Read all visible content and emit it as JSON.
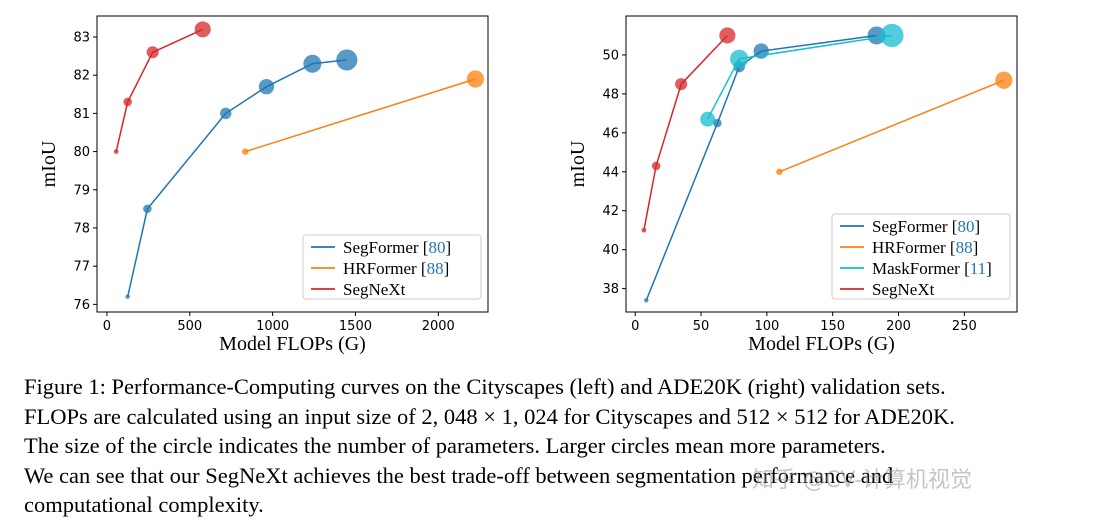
{
  "chart_data": [
    {
      "type": "scatter",
      "xlabel": "Model FLOPs (G)",
      "ylabel": "mIoU",
      "xlim": [
        -60,
        2300
      ],
      "ylim": [
        75.8,
        83.55
      ],
      "xticks": [
        "0",
        "500",
        "1000",
        "1500",
        "2000"
      ],
      "xtick_values": [
        0,
        500,
        1000,
        1500,
        2000
      ],
      "yticks": [
        "76",
        "77",
        "78",
        "79",
        "80",
        "81",
        "82",
        "83"
      ],
      "ytick_values": [
        76,
        77,
        78,
        79,
        80,
        81,
        82,
        83
      ],
      "legend_position": "lower-right",
      "series": [
        {
          "name": "SegFormer",
          "cite": "80",
          "color": "#1f77b4",
          "points": [
            {
              "x": 125,
              "y": 76.2,
              "s": 3.7
            },
            {
              "x": 244,
              "y": 78.5,
              "s": 13.7
            },
            {
              "x": 717,
              "y": 81.0,
              "s": 24.7
            },
            {
              "x": 963,
              "y": 81.7,
              "s": 44.6
            },
            {
              "x": 1240,
              "y": 82.3,
              "s": 61.4
            },
            {
              "x": 1448,
              "y": 82.4,
              "s": 84.7
            }
          ]
        },
        {
          "name": "HRFormer",
          "cite": "88",
          "color": "#ff7f0e",
          "points": [
            {
              "x": 835,
              "y": 80.0,
              "s": 8.1
            },
            {
              "x": 2224,
              "y": 81.9,
              "s": 56.2
            }
          ]
        },
        {
          "name": "SegNeXt",
          "cite": "",
          "color": "#d62728",
          "points": [
            {
              "x": 56,
              "y": 80.0,
              "s": 4.3
            },
            {
              "x": 125,
              "y": 81.3,
              "s": 13.9
            },
            {
              "x": 276,
              "y": 82.6,
              "s": 27.6
            },
            {
              "x": 578,
              "y": 83.2,
              "s": 48.9
            }
          ]
        }
      ]
    },
    {
      "type": "scatter",
      "xlabel": "Model FLOPs (G)",
      "ylabel": "mIoU",
      "xlim": [
        -7,
        290
      ],
      "ylim": [
        36.8,
        52.0
      ],
      "xticks": [
        "0",
        "50",
        "100",
        "150",
        "200",
        "250"
      ],
      "xtick_values": [
        0,
        50,
        100,
        150,
        200,
        250
      ],
      "yticks": [
        "38",
        "40",
        "42",
        "44",
        "46",
        "48",
        "50"
      ],
      "ytick_values": [
        38,
        40,
        42,
        44,
        46,
        48,
        50
      ],
      "legend_position": "lower-right",
      "series": [
        {
          "name": "SegFormer",
          "cite": "80",
          "color": "#1f77b4",
          "points": [
            {
              "x": 8.4,
              "y": 37.4,
              "s": 3.7
            },
            {
              "x": 62.4,
              "y": 46.5,
              "s": 13.7
            },
            {
              "x": 79.0,
              "y": 49.4,
              "s": 24.7
            },
            {
              "x": 95.7,
              "y": 50.2,
              "s": 44.6
            },
            {
              "x": 183.3,
              "y": 51.0,
              "s": 61.4
            }
          ]
        },
        {
          "name": "HRFormer",
          "cite": "88",
          "color": "#ff7f0e",
          "points": [
            {
              "x": 109.5,
              "y": 44.0,
              "s": 8.1
            },
            {
              "x": 280,
              "y": 48.7,
              "s": 56.2
            }
          ]
        },
        {
          "name": "MaskFormer",
          "cite": "11",
          "color": "#17becf",
          "points": [
            {
              "x": 55,
              "y": 46.7,
              "s": 42
            },
            {
              "x": 79,
              "y": 49.8,
              "s": 63
            },
            {
              "x": 195,
              "y": 51.0,
              "s": 102
            }
          ]
        },
        {
          "name": "SegNeXt",
          "cite": "",
          "color": "#d62728",
          "points": [
            {
              "x": 6.6,
              "y": 41.0,
              "s": 4.3
            },
            {
              "x": 15.9,
              "y": 44.3,
              "s": 13.9
            },
            {
              "x": 34.9,
              "y": 48.5,
              "s": 27.6
            },
            {
              "x": 70.0,
              "y": 51.0,
              "s": 48.9
            }
          ]
        }
      ]
    }
  ],
  "caption": {
    "line1": "Figure 1: Performance-Computing curves on the Cityscapes (left) and ADE20K (right) validation sets.",
    "line2": "FLOPs are calculated using an input size of 2, 048 × 1, 024 for Cityscapes and 512 × 512 for ADE20K.",
    "line3": "The size of the circle indicates the number of parameters. Larger circles mean more parameters.",
    "line4": "We can see that our SegNeXt achieves the best trade-off between segmentation performance and",
    "line5": "computational complexity."
  },
  "watermark": "知乎 @CV-计算机视觉"
}
